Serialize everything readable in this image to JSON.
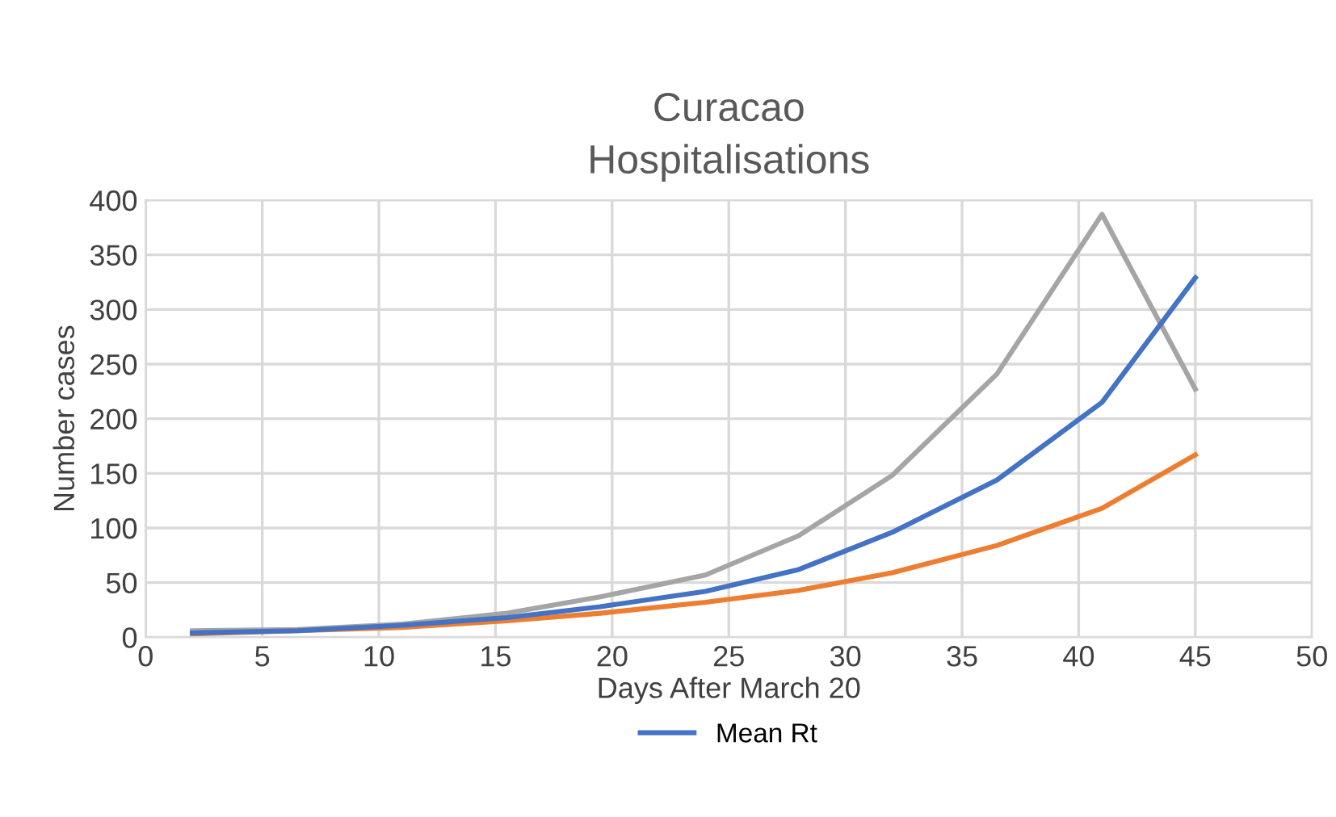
{
  "chart_data": {
    "type": "line",
    "title": "Curacao\nHospitalisations",
    "xlabel": "Days After March 20",
    "ylabel": "Number cases",
    "x": [
      2,
      6.5,
      11,
      15.5,
      19.5,
      24,
      28,
      32,
      36.5,
      41,
      45
    ],
    "series": [
      {
        "color": "#a5a5a5",
        "values": [
          6,
          7,
          12,
          22,
          37,
          57,
          93,
          148,
          241,
          387,
          227
        ]
      },
      {
        "color": "#ed7d31",
        "values": [
          3,
          6,
          9,
          15,
          22,
          32,
          43,
          59,
          84,
          118,
          167
        ]
      },
      {
        "name": "Mean Rt",
        "color": "#4472c4",
        "values": [
          4,
          6,
          11,
          18,
          28,
          42,
          62,
          96,
          144,
          215,
          329
        ]
      }
    ],
    "xlim": [
      0,
      50
    ],
    "xticks": [
      0,
      5,
      10,
      15,
      20,
      25,
      30,
      35,
      40,
      45,
      50
    ],
    "ylim": [
      0,
      400
    ],
    "yticks": [
      0,
      50,
      100,
      150,
      200,
      250,
      300,
      350,
      400
    ],
    "grid": true,
    "legend": "bottom",
    "marker": "none",
    "line_style": "solid"
  }
}
